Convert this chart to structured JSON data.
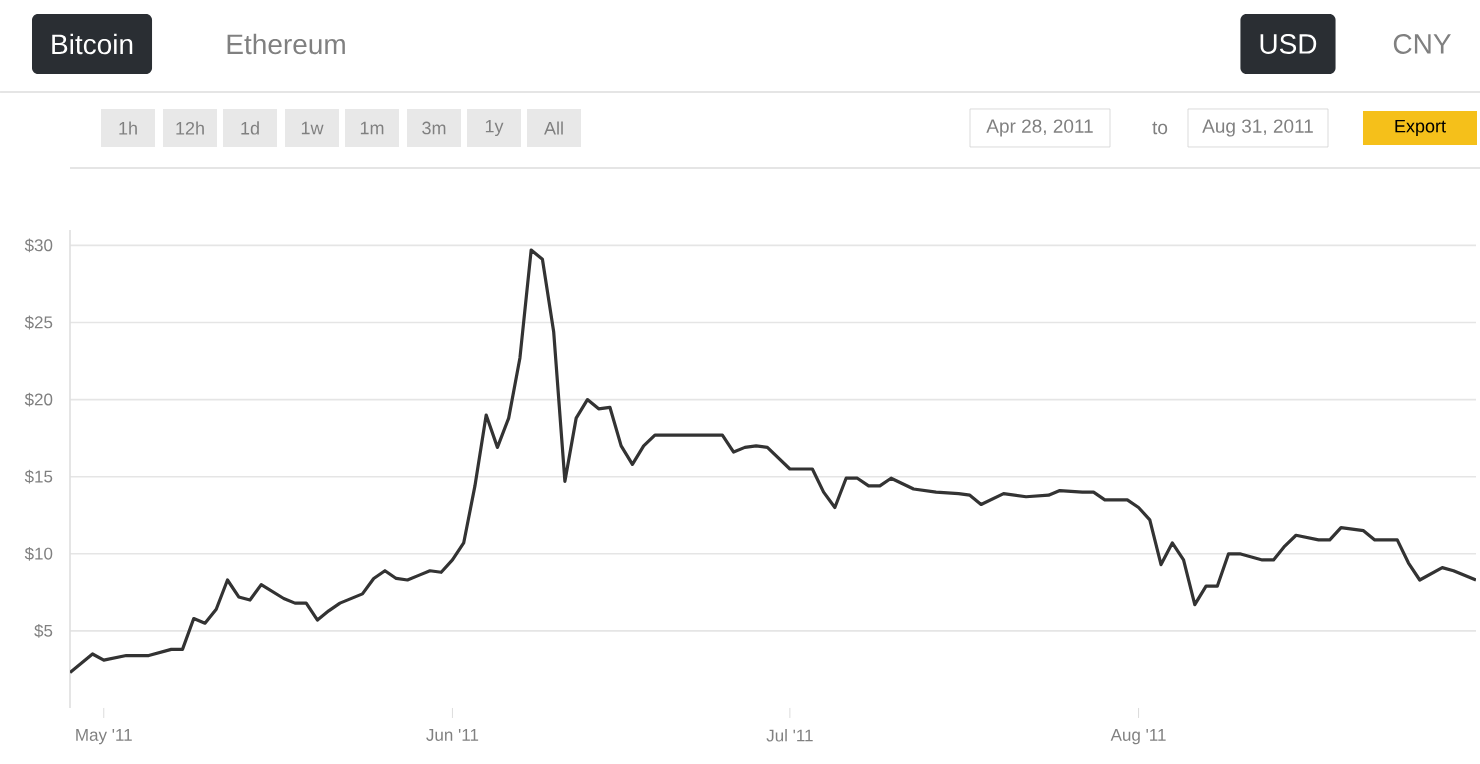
{
  "chart_data": {
    "type": "line",
    "color": "#333333",
    "line_style": "solid",
    "marker": "none",
    "grid": "y",
    "x": [
      "2011-04-28",
      "2011-04-30",
      "2011-05-01",
      "2011-05-03",
      "2011-05-05",
      "2011-05-07",
      "2011-05-08",
      "2011-05-09",
      "2011-05-10",
      "2011-05-11",
      "2011-05-12",
      "2011-05-13",
      "2011-05-14",
      "2011-05-15",
      "2011-05-17",
      "2011-05-18",
      "2011-05-19",
      "2011-05-20",
      "2011-05-21",
      "2011-05-22",
      "2011-05-24",
      "2011-05-25",
      "2011-05-26",
      "2011-05-27",
      "2011-05-28",
      "2011-05-29",
      "2011-05-30",
      "2011-05-31",
      "2011-06-01",
      "2011-06-02",
      "2011-06-03",
      "2011-06-04",
      "2011-06-05",
      "2011-06-06",
      "2011-06-07",
      "2011-06-08",
      "2011-06-09",
      "2011-06-10",
      "2011-06-11",
      "2011-06-12",
      "2011-06-13",
      "2011-06-14",
      "2011-06-15",
      "2011-06-16",
      "2011-06-17",
      "2011-06-18",
      "2011-06-19",
      "2011-06-25",
      "2011-06-26",
      "2011-06-27",
      "2011-06-28",
      "2011-06-29",
      "2011-07-01",
      "2011-07-03",
      "2011-07-04",
      "2011-07-05",
      "2011-07-06",
      "2011-07-07",
      "2011-07-08",
      "2011-07-09",
      "2011-07-10",
      "2011-07-12",
      "2011-07-14",
      "2011-07-16",
      "2011-07-17",
      "2011-07-18",
      "2011-07-20",
      "2011-07-22",
      "2011-07-24",
      "2011-07-25",
      "2011-07-27",
      "2011-07-28",
      "2011-07-29",
      "2011-07-31",
      "2011-08-01",
      "2011-08-02",
      "2011-08-03",
      "2011-08-04",
      "2011-08-05",
      "2011-08-06",
      "2011-08-07",
      "2011-08-08",
      "2011-08-09",
      "2011-08-10",
      "2011-08-12",
      "2011-08-13",
      "2011-08-14",
      "2011-08-15",
      "2011-08-17",
      "2011-08-18",
      "2011-08-19",
      "2011-08-21",
      "2011-08-22",
      "2011-08-24",
      "2011-08-25",
      "2011-08-26",
      "2011-08-28",
      "2011-08-29",
      "2011-08-31"
    ],
    "values": [
      2.3,
      3.5,
      3.1,
      3.4,
      3.4,
      3.8,
      3.8,
      5.8,
      5.5,
      6.4,
      8.3,
      7.2,
      7.0,
      8.0,
      7.1,
      6.8,
      6.8,
      5.7,
      6.3,
      6.8,
      7.4,
      8.4,
      8.9,
      8.4,
      8.3,
      8.6,
      8.9,
      8.8,
      9.6,
      10.7,
      14.4,
      19.0,
      16.9,
      18.8,
      22.7,
      29.7,
      29.1,
      24.4,
      14.7,
      18.8,
      20.0,
      19.4,
      19.5,
      17.0,
      15.8,
      17.0,
      17.7,
      17.7,
      16.6,
      16.9,
      17.0,
      16.9,
      15.5,
      15.5,
      14.0,
      13.0,
      14.9,
      14.9,
      14.4,
      14.4,
      14.9,
      14.2,
      14.0,
      13.9,
      13.8,
      13.2,
      13.9,
      13.7,
      13.8,
      14.1,
      14.0,
      14.0,
      13.5,
      13.5,
      13.0,
      12.2,
      9.3,
      10.7,
      9.6,
      6.7,
      7.9,
      7.9,
      10.0,
      10.0,
      9.6,
      9.6,
      10.5,
      11.2,
      10.9,
      10.9,
      11.7,
      11.5,
      10.9,
      10.9,
      9.4,
      8.3,
      9.1,
      8.9,
      8.3
    ],
    "xlim": [
      "2011-04-28",
      "2011-08-31"
    ],
    "xticks": [
      {
        "value": "2011-05-01",
        "label": "May '11"
      },
      {
        "value": "2011-06-01",
        "label": "Jun '11"
      },
      {
        "value": "2011-07-01",
        "label": "Jul '11"
      },
      {
        "value": "2011-08-01",
        "label": "Aug '11"
      }
    ],
    "ylim": [
      0,
      31
    ],
    "yticks": [
      {
        "value": 5,
        "label": "$5"
      },
      {
        "value": 10,
        "label": "$10"
      },
      {
        "value": 15,
        "label": "$15"
      },
      {
        "value": 20,
        "label": "$20"
      },
      {
        "value": 25,
        "label": "$25"
      },
      {
        "value": 30,
        "label": "$30"
      }
    ],
    "annotations": [
      "Bitcoin",
      "Ethereum",
      "USD",
      "CNY",
      "1h",
      "12h",
      "1d",
      "1w",
      "1m",
      "3m",
      "1y",
      "All",
      "Apr 28, 2011",
      "to",
      "Aug 31, 2011",
      "Export"
    ]
  }
}
